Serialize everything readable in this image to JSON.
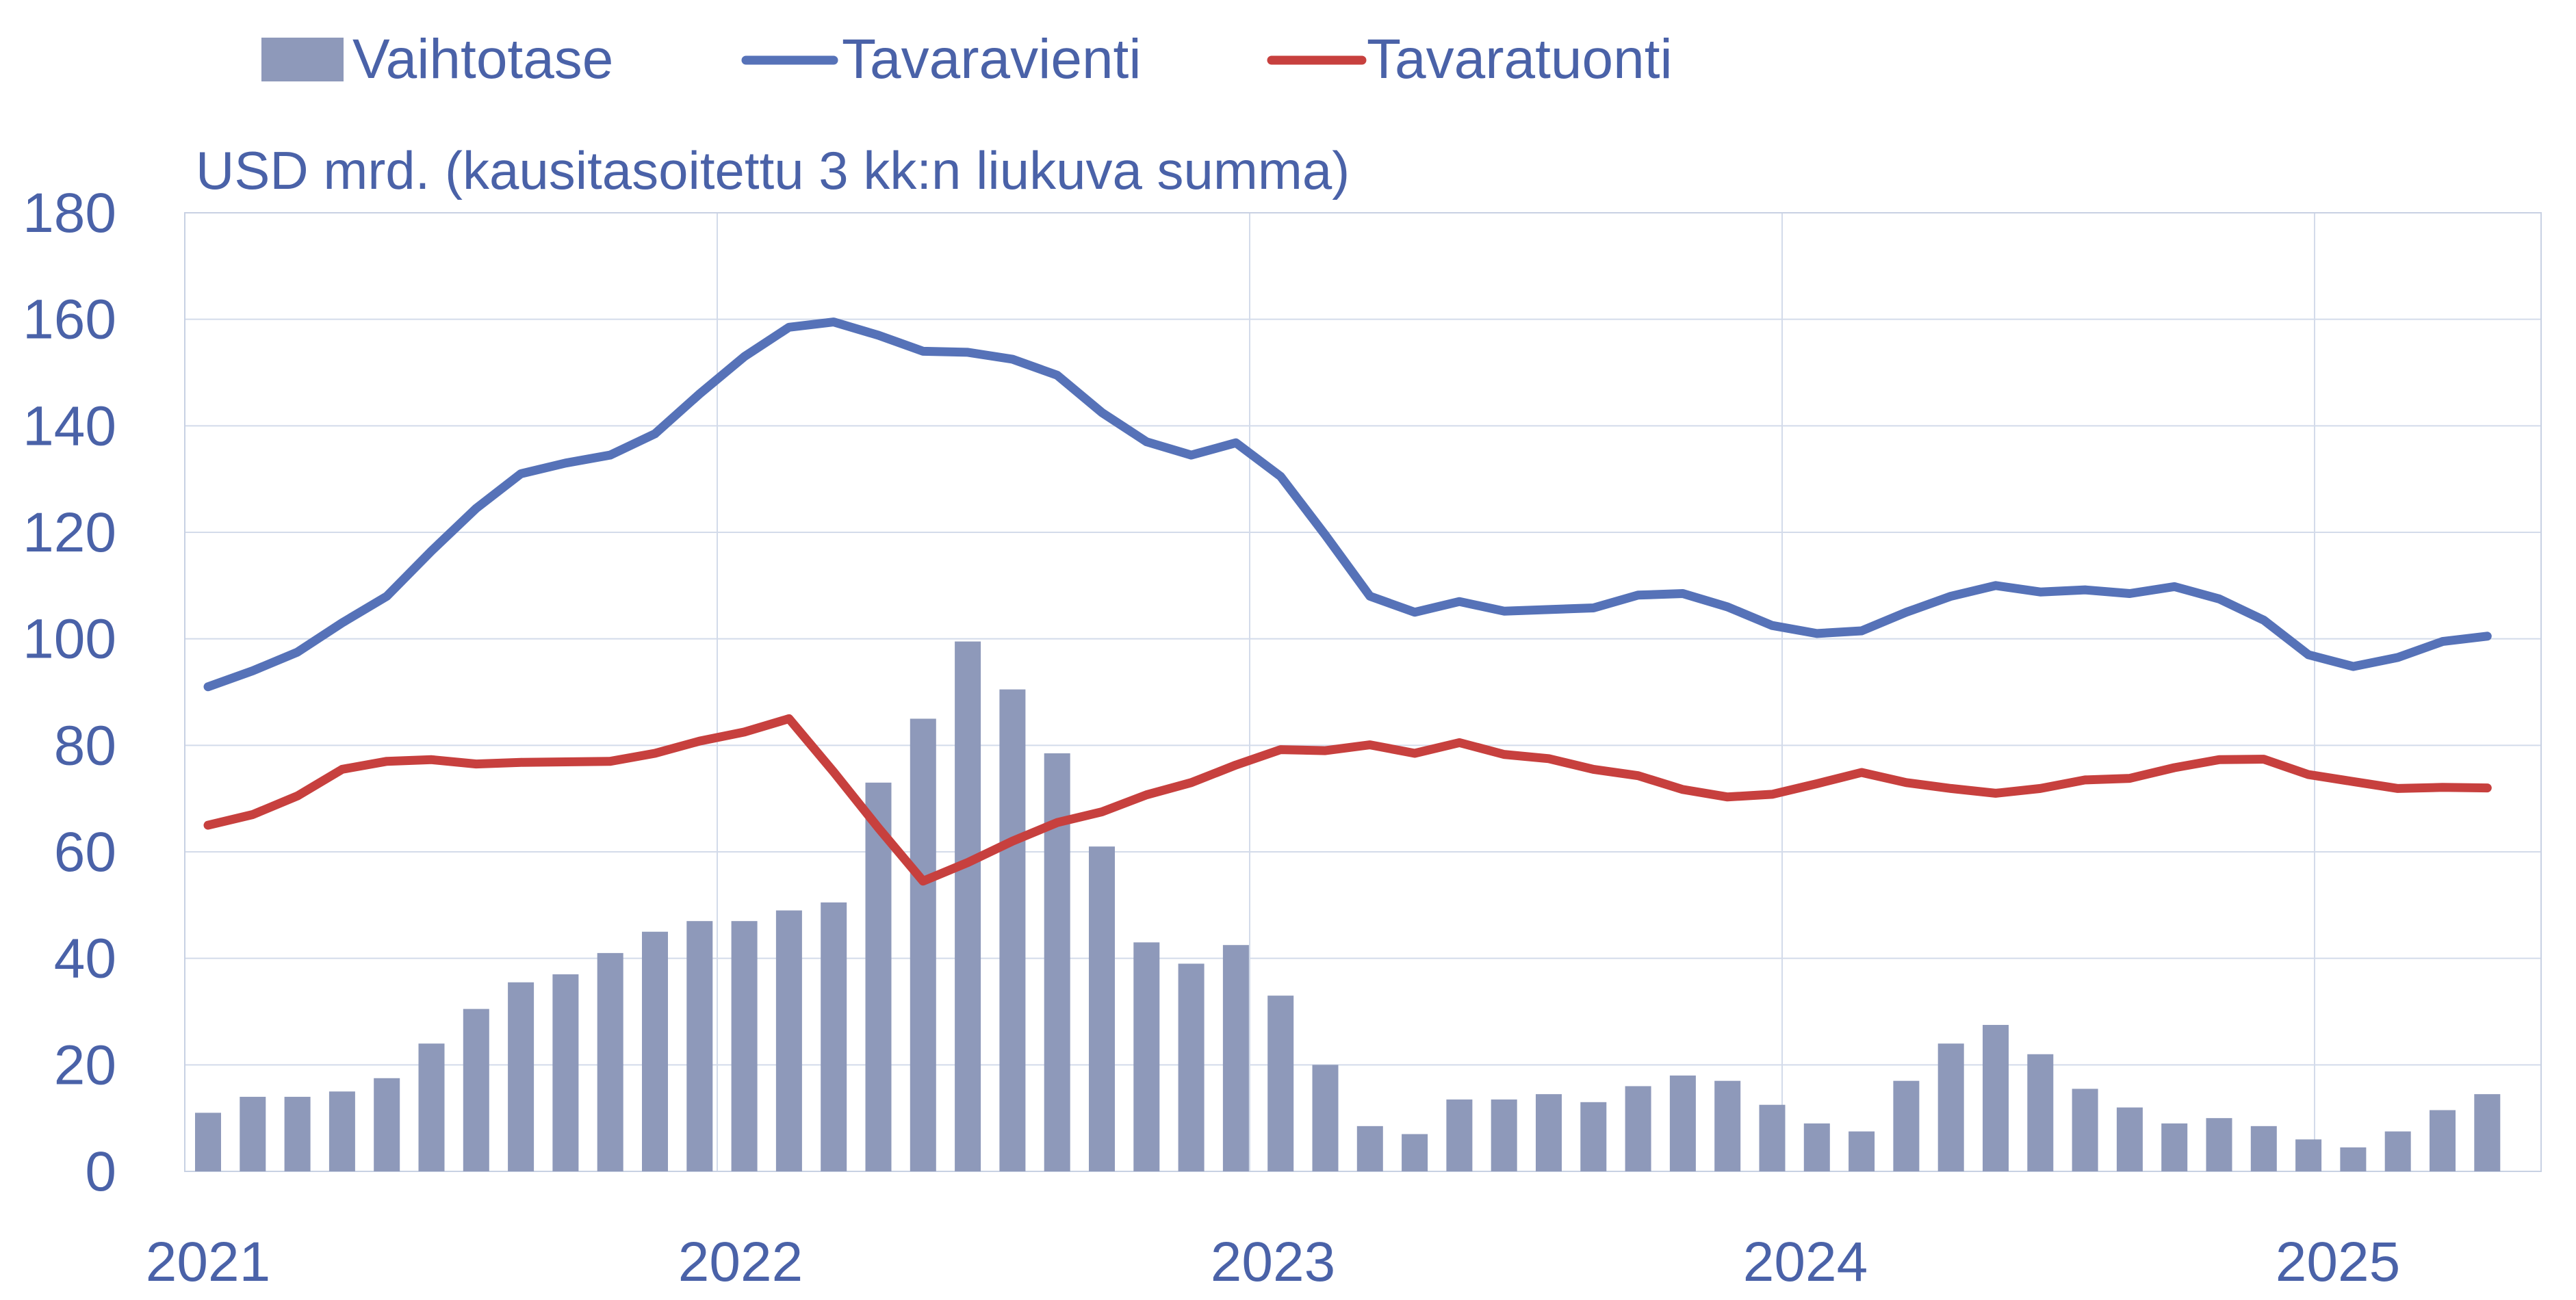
{
  "chart_data": {
    "type": "bar+line",
    "legend": {
      "placement": "top",
      "items": [
        {
          "label": "Vaihtotase",
          "kind": "bar",
          "color": "#8e99ba"
        },
        {
          "label": "Tavaravienti",
          "kind": "line",
          "color": "#5672b8"
        },
        {
          "label": "Tavaratuonti",
          "kind": "line",
          "color": "#c7403e"
        }
      ]
    },
    "unit_label": "USD mrd. (kausitasoitettu 3 kk:n liukuva summa)",
    "x_axis": {
      "type": "monthly",
      "start": "2021-01",
      "ticks": [
        "2021",
        "2022",
        "2023",
        "2024",
        "2025"
      ]
    },
    "y_axis": {
      "min": 0,
      "max": 180,
      "step": 20,
      "ticks": [
        "0",
        "20",
        "40",
        "60",
        "80",
        "100",
        "120",
        "140",
        "160",
        "180"
      ]
    },
    "grid": true,
    "series": [
      {
        "name": "Vaihtotase",
        "type": "bar",
        "color": "#8e99ba",
        "values": [
          11,
          14,
          14,
          15,
          17.5,
          24,
          30.5,
          35.5,
          37,
          41,
          45,
          47,
          47,
          49,
          50.5,
          73,
          85,
          99.5,
          90.5,
          78.5,
          61,
          43,
          39,
          42.5,
          33,
          20,
          8.5,
          7,
          13.5,
          13.5,
          14.5,
          13,
          16,
          18,
          17,
          12.5,
          9,
          7.5,
          17,
          24,
          27.5,
          22,
          15.5,
          12,
          9,
          10,
          8.5,
          6,
          4.5,
          7.5,
          11.5,
          14.5
        ]
      },
      {
        "name": "Tavaravienti",
        "type": "line",
        "color": "#5672b8",
        "values": [
          91,
          94,
          97.5,
          103,
          108,
          116.5,
          124.5,
          131,
          133,
          134.5,
          138.5,
          146,
          153,
          158.5,
          159.5,
          157,
          154,
          153.8,
          152.5,
          149.5,
          142.5,
          137,
          134.5,
          136.8,
          130.5,
          119.5,
          108,
          105,
          107,
          105.2,
          105.5,
          105.8,
          108.2,
          108.5,
          106,
          102.5,
          101,
          101.5,
          105,
          108,
          110,
          108.8,
          109.2,
          108.5,
          109.8,
          107.5,
          103.5,
          97,
          94.8,
          96.5,
          99.5,
          100.5
        ]
      },
      {
        "name": "Tavaratuonti",
        "type": "line",
        "color": "#c7403e",
        "values": [
          65,
          67,
          70.5,
          75.5,
          77,
          77.3,
          76.5,
          76.8,
          76.9,
          77,
          78.5,
          80.8,
          82.5,
          85,
          75,
          64.5,
          54.5,
          58,
          62,
          65.5,
          67.5,
          70.7,
          73,
          76.3,
          79.2,
          79,
          80.1,
          78.5,
          80.5,
          78.3,
          77.5,
          75.5,
          74.3,
          71.7,
          70.3,
          70.8,
          72.8,
          74.9,
          73,
          71.9,
          71,
          71.9,
          73.5,
          73.8,
          75.8,
          77.3,
          77.4,
          74.5,
          73.2,
          71.9,
          72.1,
          72
        ]
      }
    ]
  }
}
